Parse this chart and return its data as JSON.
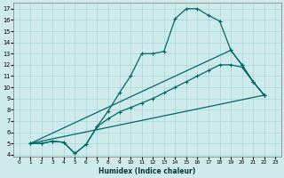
{
  "xlabel": "Humidex (Indice chaleur)",
  "xlim": [
    -0.5,
    23.5
  ],
  "ylim": [
    3.8,
    17.5
  ],
  "xticks": [
    0,
    1,
    2,
    3,
    4,
    5,
    6,
    7,
    8,
    9,
    10,
    11,
    12,
    13,
    14,
    15,
    16,
    17,
    18,
    19,
    20,
    21,
    22,
    23
  ],
  "yticks": [
    4,
    5,
    6,
    7,
    8,
    9,
    10,
    11,
    12,
    13,
    14,
    15,
    16,
    17
  ],
  "bg_color": "#ceeaea",
  "line_color": "#006868",
  "grid_color": "#a8d8d8",
  "line1_x": [
    1,
    2,
    3,
    4,
    5,
    6,
    7,
    8,
    9,
    10,
    11,
    12,
    13,
    14,
    15,
    16,
    17,
    18,
    19,
    20,
    21,
    22
  ],
  "line1_y": [
    5.0,
    5.0,
    5.2,
    5.1,
    4.1,
    4.9,
    6.5,
    7.9,
    9.5,
    11.0,
    13.0,
    13.0,
    13.2,
    16.1,
    17.0,
    17.0,
    16.4,
    15.9,
    13.3,
    12.0,
    10.5,
    9.3
  ],
  "line2_x": [
    1,
    2,
    3,
    4,
    5,
    6,
    7,
    8,
    9,
    10,
    11,
    12,
    13,
    14,
    15,
    16,
    17,
    18,
    19,
    20,
    21,
    22
  ],
  "line2_y": [
    5.0,
    5.0,
    5.2,
    5.1,
    4.1,
    4.9,
    6.5,
    7.2,
    7.8,
    8.2,
    8.6,
    9.0,
    9.5,
    10.0,
    10.5,
    11.0,
    11.5,
    12.0,
    12.0,
    11.8,
    10.5,
    9.3
  ],
  "line3_x": [
    1,
    22
  ],
  "line3_y": [
    5.0,
    9.3
  ],
  "line4_x": [
    1,
    19,
    20,
    21,
    22
  ],
  "line4_y": [
    5.0,
    13.3,
    12.0,
    10.5,
    9.3
  ]
}
